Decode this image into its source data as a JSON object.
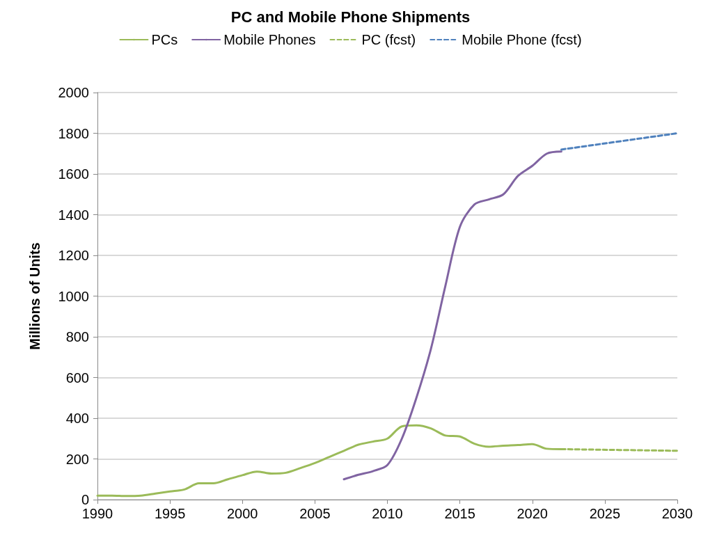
{
  "chart_data": {
    "type": "line",
    "title": "PC and Mobile Phone Shipments",
    "ylabel": "Millions of Units",
    "xlim": [
      1990,
      2030
    ],
    "xticks": [
      1990,
      1995,
      2000,
      2005,
      2010,
      2015,
      2020,
      2025,
      2030
    ],
    "ylim": [
      0,
      2000
    ],
    "yticks": [
      0,
      200,
      400,
      600,
      800,
      1000,
      1200,
      1400,
      1600,
      1800,
      2000
    ],
    "grid": "y",
    "legend": "top",
    "marker": "none",
    "series": [
      {
        "name": "PCs",
        "color": "#9bbb59",
        "line_style": "solid",
        "x": [
          1990,
          1991,
          1992,
          1993,
          1994,
          1995,
          1996,
          1997,
          1998,
          1999,
          2000,
          2001,
          2002,
          2003,
          2004,
          2005,
          2006,
          2007,
          2008,
          2009,
          2010,
          2011,
          2012,
          2013,
          2014,
          2015,
          2016,
          2017,
          2018,
          2019,
          2020,
          2021,
          2022
        ],
        "values": [
          20,
          20,
          18,
          20,
          30,
          40,
          50,
          80,
          80,
          100,
          120,
          138,
          128,
          132,
          155,
          180,
          210,
          240,
          270,
          285,
          300,
          360,
          365,
          350,
          315,
          310,
          275,
          260,
          265,
          268,
          273,
          250,
          248
        ]
      },
      {
        "name": "Mobile Phones",
        "color": "#8064a2",
        "line_style": "solid",
        "x": [
          2007,
          2008,
          2009,
          2010,
          2011,
          2012,
          2013,
          2014,
          2015,
          2016,
          2017,
          2018,
          2019,
          2020,
          2021,
          2022
        ],
        "values": [
          100,
          122,
          140,
          170,
          300,
          500,
          740,
          1050,
          1340,
          1450,
          1475,
          1500,
          1590,
          1640,
          1700,
          1710
        ]
      },
      {
        "name": "PC (fcst)",
        "color": "#9bbb59",
        "line_style": "dashed",
        "x": [
          2022,
          2030
        ],
        "values": [
          248,
          240
        ]
      },
      {
        "name": "Mobile Phone (fcst)",
        "color": "#4f81bd",
        "line_style": "dashed",
        "x": [
          2022,
          2030
        ],
        "values": [
          1720,
          1800
        ]
      }
    ]
  }
}
